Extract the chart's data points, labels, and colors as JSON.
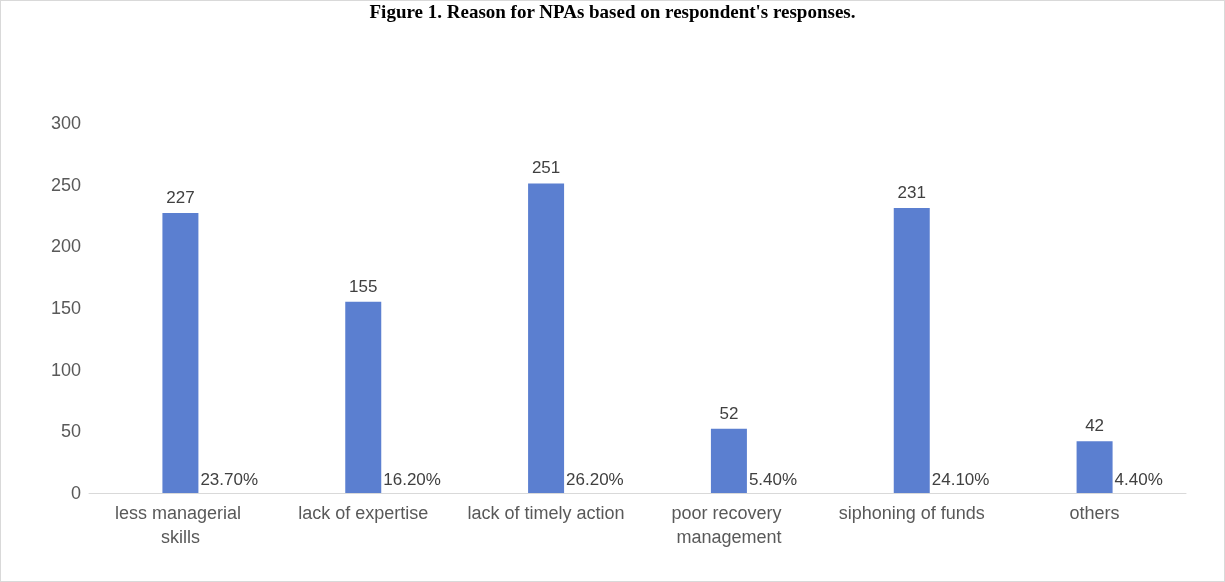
{
  "chart_data": {
    "type": "bar",
    "title": "Figure 1. Reason for NPAs based on respondent's responses.",
    "categories": [
      "less managerial skills",
      "lack of expertise",
      "lack of timely action",
      "poor recovery management",
      "siphoning of funds",
      "others"
    ],
    "series": [
      {
        "color": "#5b7fd0",
        "values": [
          227,
          155,
          251,
          52,
          231,
          42
        ]
      }
    ],
    "data_labels": true,
    "annotations": [
      {
        "text": "23.70%",
        "x": "less managerial skills",
        "y": 0
      },
      {
        "text": "16.20%",
        "x": "lack of expertise",
        "y": 0
      },
      {
        "text": "26.20%",
        "x": "lack of timely action",
        "y": 0
      },
      {
        "text": "5.40%",
        "x": "poor recovery management",
        "y": 0
      },
      {
        "text": "24.10%",
        "x": "siphoning of funds",
        "y": 0
      },
      {
        "text": "4.40%",
        "x": "others",
        "y": 0
      }
    ],
    "ylim": [
      0,
      300
    ],
    "yticks": [
      0,
      50,
      100,
      150,
      200,
      250,
      300
    ],
    "grid": false
  }
}
